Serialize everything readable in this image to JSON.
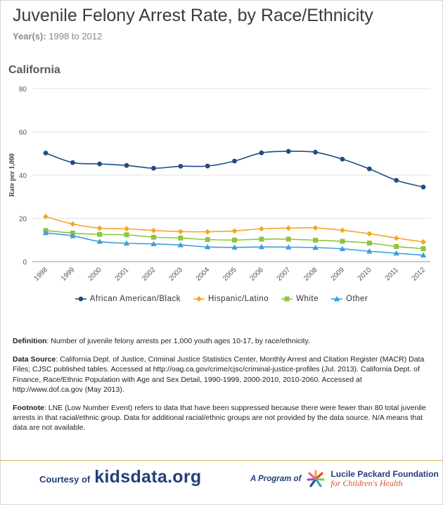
{
  "header": {
    "title": "Juvenile Felony Arrest Rate, by Race/Ethnicity",
    "years_label": "Year(s):",
    "years_value": "1998 to 2012",
    "region": "California"
  },
  "chart_data": {
    "type": "line",
    "title": "Juvenile Felony Arrest Rate, by Race/Ethnicity",
    "xlabel": "",
    "ylabel": "Rate per 1,000",
    "ylim": [
      0,
      80
    ],
    "yticks": [
      "0",
      "20",
      "40",
      "60",
      "80"
    ],
    "categories": [
      "1998",
      "1999",
      "2000",
      "2001",
      "2002",
      "2003",
      "2004",
      "2005",
      "2006",
      "2007",
      "2008",
      "2009",
      "2010",
      "2011",
      "2012"
    ],
    "grid": true,
    "legend_position": "bottom",
    "series": [
      {
        "name": "African American/Black",
        "color": "#1f4e87",
        "marker": "circle",
        "values": [
          50.2,
          45.8,
          45.2,
          44.5,
          43.2,
          44.1,
          44.2,
          46.5,
          50.3,
          51.0,
          50.6,
          47.4,
          42.9,
          37.6,
          34.5
        ]
      },
      {
        "name": "Hispanic/Latino",
        "color": "#f5a623",
        "marker": "diamond",
        "values": [
          20.8,
          17.4,
          15.5,
          15.2,
          14.4,
          13.9,
          13.8,
          14.2,
          15.2,
          15.5,
          15.6,
          14.5,
          12.9,
          10.9,
          9.1
        ]
      },
      {
        "name": "White",
        "color": "#8dc63f",
        "marker": "square",
        "values": [
          14.4,
          13.2,
          12.6,
          12.4,
          11.3,
          10.9,
          10.2,
          10.0,
          10.4,
          10.4,
          9.9,
          9.4,
          8.6,
          7.0,
          6.0
        ]
      },
      {
        "name": "Other",
        "color": "#3aa0d9",
        "marker": "triangle",
        "values": [
          13.3,
          11.9,
          9.3,
          8.5,
          8.2,
          7.7,
          6.8,
          6.6,
          6.8,
          6.7,
          6.5,
          5.9,
          4.8,
          3.9,
          3.0
        ]
      }
    ]
  },
  "notes": {
    "definition_label": "Definition",
    "definition_text": ": Number of juvenile felony arrests per 1,000 youth ages 10-17, by race/ethnicity.",
    "source_label": "Data Source",
    "source_text": ": California Dept. of Justice, Criminal Justice Statistics Center, Monthly Arrest and Citation Register (MACR) Data Files; CJSC published tables. Accessed at http://oag.ca.gov/crime/cjsc/criminal-justice-profiles (Jul. 2013). California Dept. of Finance, Race/Ethnic Population with Age and Sex Detail, 1990-1999, 2000-2010, 2010-2060. Accessed at http://www.dof.ca.gov (May 2013).",
    "footnote_label": "Footnote",
    "footnote_text": ": LNE (Low Number Event) refers to data that have been suppressed because there were fewer than 80 total juvenile arrests in that racial/ethnic group. Data for additional racial/ethnic groups are not provided by the data source. N/A means that data are not available."
  },
  "footer": {
    "courtesy_label": "Courtesy of",
    "courtesy_brand": "kidsdata.org",
    "program_label": "A Program of",
    "foundation_name": "Lucile Packard Foundation",
    "foundation_sub": "for Children's Health",
    "accent_color": "#e2b55a"
  }
}
